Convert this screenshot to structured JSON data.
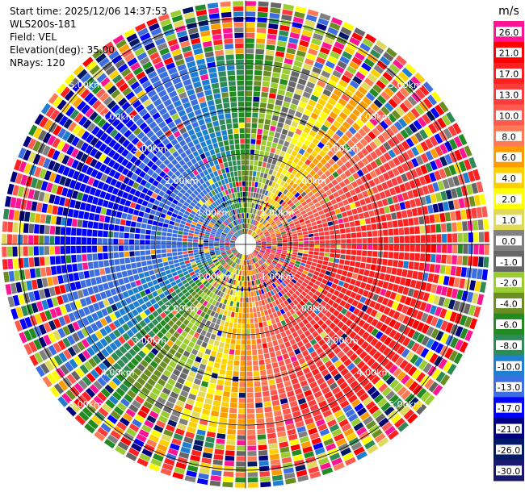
{
  "info": {
    "start_time": "Start time: 2025/12/06 14:37:53",
    "instrument": "WLS200s-181",
    "field": "Field: VEL",
    "elevation": "Elevation(deg): 35.00",
    "nrays": "NRays: 120"
  },
  "chart_data": {
    "type": "ppi",
    "field": "VEL",
    "units": "m/s",
    "rays": 120,
    "range_rings_km": [
      1.0,
      2.0,
      3.0,
      4.0,
      5.0
    ],
    "ring_labels": [
      "1.00km",
      "2.00km",
      "3.00km",
      "4.00km",
      "5.00km"
    ],
    "max_range_km": 5.4,
    "wind": {
      "description": "approaching (negative) toward west/north-west, receding (positive) toward east/south-east",
      "peak_positive_ms": 17.0,
      "peak_negative_ms": -21.0,
      "noise_beyond_km": 4.2
    },
    "colorbar": {
      "title": "m/s",
      "ticks": [
        "26.0",
        "21.0",
        "17.0",
        "13.0",
        "10.0",
        "8.0",
        "6.0",
        "4.0",
        "2.0",
        "1.0",
        "0.0",
        "-1.0",
        "-2.0",
        "-4.0",
        "-6.0",
        "-8.0",
        "-10.0",
        "-13.0",
        "-17.0",
        "-21.0",
        "-26.0",
        "-30.0"
      ],
      "colors": [
        "#ff1493",
        "#ff0000",
        "#ff2020",
        "#ff3c3c",
        "#ff5a50",
        "#ff7a55",
        "#ff9d00",
        "#ffd000",
        "#ffff00",
        "#e0d95a",
        "#808080",
        "#666666",
        "#9acd32",
        "#6b8e23",
        "#228b22",
        "#2e8b57",
        "#1e7fd0",
        "#3c6ee0",
        "#0000ff",
        "#000080",
        "#001a66",
        "#191970"
      ]
    }
  }
}
